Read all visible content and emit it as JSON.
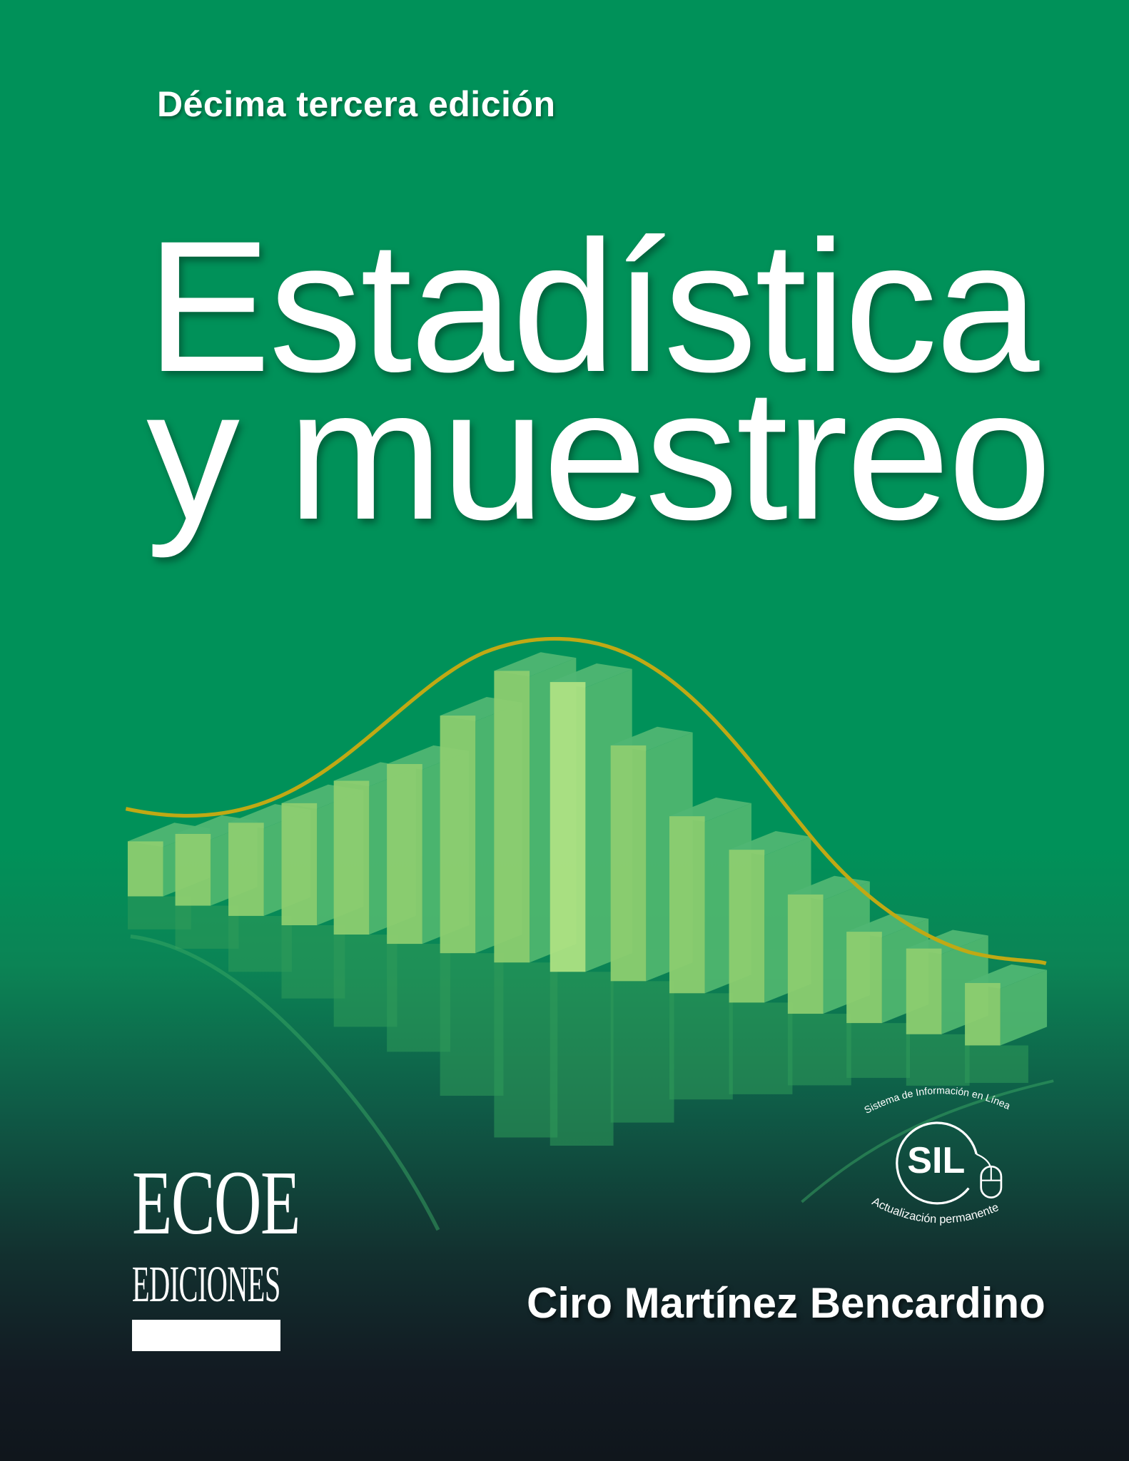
{
  "cover": {
    "edition": "Décima tercera edición",
    "title_line1": "Estadística",
    "title_line2": "y muestreo",
    "author": "Ciro Martínez Bencardino"
  },
  "publisher_logo": {
    "line1": "ECOE",
    "line2": "EDICIONES"
  },
  "sil_badge": {
    "acronym": "SIL",
    "top_arc": "Sistema de Información en Línea",
    "bottom_arc": "Actualización permanente",
    "icon": "computer-mouse-icon"
  },
  "colors": {
    "background": "#009159",
    "bar_front": "#8ccd70",
    "bar_side": "#52b870",
    "curve": "#c0a914",
    "text": "#ffffff"
  }
}
